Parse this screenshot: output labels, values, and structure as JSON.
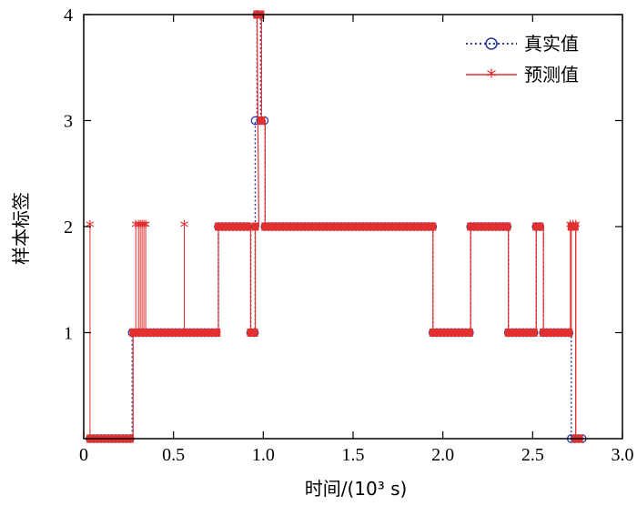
{
  "chart_data": {
    "type": "line",
    "xlabel": "时间/(10³ s)",
    "ylabel": "样本标签",
    "xlim": [
      0,
      3.0
    ],
    "ylim": [
      0,
      4
    ],
    "xticks": [
      "0",
      "0.5",
      "1.0",
      "1.5",
      "2.0",
      "2.5",
      "3.0"
    ],
    "yticks": [
      "1",
      "2",
      "3",
      "4"
    ],
    "grid": false,
    "legend_position": "top-right",
    "series": [
      {
        "name": "真实值",
        "style": "dotted-circle",
        "color": "#2b3a9a",
        "segments": [
          {
            "x0": 0.035,
            "x1": 0.27,
            "y": 0
          },
          {
            "x0": 0.27,
            "x1": 0.75,
            "y": 1
          },
          {
            "x0": 0.75,
            "x1": 0.93,
            "y": 2
          },
          {
            "x0": 0.93,
            "x1": 0.955,
            "y": 1
          },
          {
            "x0": 0.955,
            "x1": 0.965,
            "y": 3
          },
          {
            "x0": 0.965,
            "x1": 0.985,
            "y": 4
          },
          {
            "x0": 0.985,
            "x1": 1.01,
            "y": 3
          },
          {
            "x0": 1.01,
            "x1": 1.945,
            "y": 2
          },
          {
            "x0": 1.945,
            "x1": 2.155,
            "y": 1
          },
          {
            "x0": 2.155,
            "x1": 2.365,
            "y": 2
          },
          {
            "x0": 2.365,
            "x1": 2.52,
            "y": 1
          },
          {
            "x0": 2.52,
            "x1": 2.56,
            "y": 2
          },
          {
            "x0": 2.56,
            "x1": 2.715,
            "y": 1
          },
          {
            "x0": 2.715,
            "x1": 2.78,
            "y": 0
          }
        ]
      },
      {
        "name": "预测值",
        "style": "solid-star",
        "color": "#e03030",
        "segments": [
          {
            "x0": 0.035,
            "x1": 0.275,
            "y": 0
          },
          {
            "x0": 0.275,
            "x1": 0.75,
            "y": 1
          },
          {
            "x0": 0.75,
            "x1": 0.93,
            "y": 2
          },
          {
            "x0": 0.93,
            "x1": 0.955,
            "y": 1
          },
          {
            "x0": 0.955,
            "x1": 0.975,
            "y": 2
          },
          {
            "x0": 0.965,
            "x1": 0.99,
            "y": 4
          },
          {
            "x0": 0.99,
            "x1": 1.01,
            "y": 3
          },
          {
            "x0": 1.01,
            "x1": 1.945,
            "y": 2
          },
          {
            "x0": 1.945,
            "x1": 2.155,
            "y": 1
          },
          {
            "x0": 2.155,
            "x1": 2.365,
            "y": 2
          },
          {
            "x0": 2.365,
            "x1": 2.52,
            "y": 1
          },
          {
            "x0": 2.52,
            "x1": 2.56,
            "y": 2
          },
          {
            "x0": 2.56,
            "x1": 2.715,
            "y": 1
          },
          {
            "x0": 2.715,
            "x1": 2.74,
            "y": 2
          },
          {
            "x0": 2.74,
            "x1": 2.78,
            "y": 0
          }
        ],
        "spikes": [
          {
            "x": 0.035,
            "y": 2
          },
          {
            "x": 0.29,
            "y": 2
          },
          {
            "x": 0.305,
            "y": 2
          },
          {
            "x": 0.315,
            "y": 2
          },
          {
            "x": 0.325,
            "y": 2
          },
          {
            "x": 0.335,
            "y": 2
          },
          {
            "x": 0.345,
            "y": 2
          },
          {
            "x": 0.56,
            "y": 2
          },
          {
            "x": 2.71,
            "y": 2
          },
          {
            "x": 2.725,
            "y": 2
          },
          {
            "x": 2.74,
            "y": 2
          }
        ]
      }
    ]
  }
}
